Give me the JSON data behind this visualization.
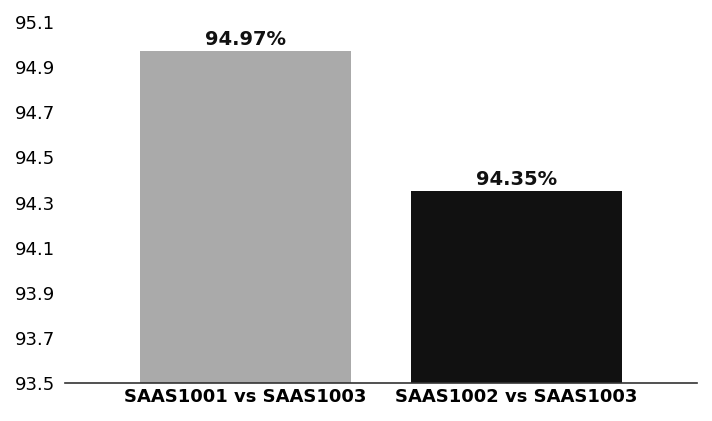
{
  "categories": [
    "SAAS1001 vs SAAS1003",
    "SAAS1002 vs SAAS1003"
  ],
  "values": [
    94.97,
    94.35
  ],
  "bar_colors": [
    "#aaaaaa",
    "#111111"
  ],
  "labels": [
    "94.97%",
    "94.35%"
  ],
  "ylim": [
    93.5,
    95.1
  ],
  "yticks": [
    93.5,
    93.7,
    93.9,
    94.1,
    94.3,
    94.5,
    94.7,
    94.9,
    95.1
  ],
  "bar_width": 0.35,
  "label_fontsize": 14,
  "tick_fontsize": 13,
  "background_color": "#ffffff"
}
